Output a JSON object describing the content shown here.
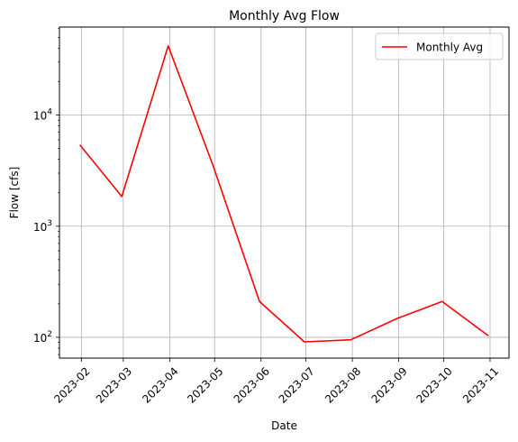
{
  "chart_data": {
    "type": "line",
    "title": "Monthly Avg Flow",
    "xlabel": "Date",
    "ylabel": "Flow [cfs]",
    "yscale": "log",
    "ylim": [
      65,
      62000
    ],
    "grid": true,
    "legend_position": "top-right",
    "x_ticks": [
      "2023-02",
      "2023-03",
      "2023-04",
      "2023-05",
      "2023-06",
      "2023-07",
      "2023-08",
      "2023-09",
      "2023-10",
      "2023-11"
    ],
    "y_ticks": [
      {
        "value": 100,
        "base": "10",
        "exp": "2"
      },
      {
        "value": 1000,
        "base": "10",
        "exp": "3"
      },
      {
        "value": 10000,
        "base": "10",
        "exp": "4"
      }
    ],
    "series": [
      {
        "name": "Monthly Avg",
        "color": "#ff0000",
        "x": [
          "2023-01-31",
          "2023-02-28",
          "2023-03-31",
          "2023-04-30",
          "2023-05-31",
          "2023-06-30",
          "2023-07-31",
          "2023-08-31",
          "2023-09-30",
          "2023-10-31"
        ],
        "values": [
          5400,
          1850,
          42000,
          3500,
          210,
          91,
          95,
          148,
          210,
          103
        ]
      }
    ]
  }
}
